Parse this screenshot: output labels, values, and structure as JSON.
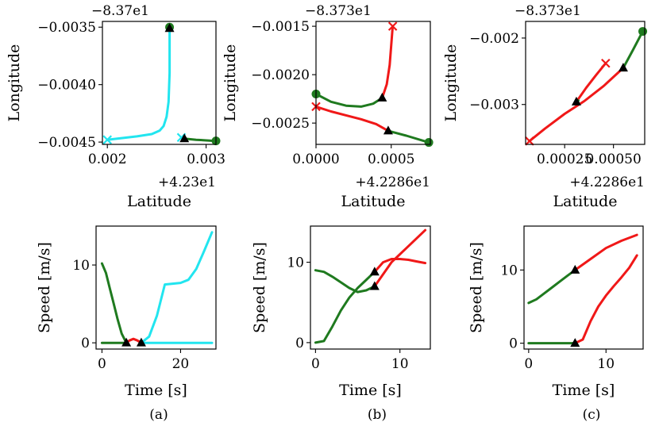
{
  "colors": {
    "cyan": "#22e5ef",
    "green": "#1f7a1f",
    "red": "#f01818",
    "black": "#000000"
  },
  "chart_data": [
    {
      "id": "a_pos",
      "type": "line",
      "panel": "a",
      "title": "",
      "xlabel": "Latitude",
      "ylabel": "Longitude",
      "offset_x": "+4.23e1",
      "offset_y": "−8.37e1",
      "xlim": [
        0.00195,
        0.0031
      ],
      "ylim": [
        -0.00452,
        -0.00345
      ],
      "xticks": [
        0.002,
        0.003
      ],
      "xtick_labels": [
        "0.002",
        "0.003"
      ],
      "yticks": [
        -0.0035,
        -0.004,
        -0.0045
      ],
      "ytick_labels": [
        "−0.0035",
        "−0.0040",
        "−0.0045"
      ],
      "series": [
        {
          "name": "vehicle-1",
          "color": "cyan",
          "x": [
            0.00263,
            0.00263,
            0.00262,
            0.0026,
            0.00257,
            0.00253,
            0.00245,
            0.0023,
            0.0021,
            0.002
          ],
          "y": [
            -0.0035,
            -0.0039,
            -0.00415,
            -0.00428,
            -0.00436,
            -0.0044,
            -0.00443,
            -0.00445,
            -0.00447,
            -0.00448
          ]
        },
        {
          "name": "vehicle-2",
          "color": "green",
          "x": [
            0.00278,
            0.0029,
            0.0031
          ],
          "y": [
            -0.00447,
            -0.00448,
            -0.00449
          ]
        },
        {
          "name": "vehicle-3",
          "color": "cyan",
          "x": [
            0.00275,
            0.00278
          ],
          "y": [
            -0.00446,
            -0.00447
          ]
        }
      ],
      "markers": [
        {
          "type": "circle",
          "color": "green",
          "x": 0.00263,
          "y": -0.0035
        },
        {
          "type": "triangle",
          "color": "black",
          "x": 0.00263,
          "y": -0.00351
        },
        {
          "type": "cross",
          "color": "cyan",
          "x": 0.002,
          "y": -0.00448
        },
        {
          "type": "cross",
          "color": "cyan",
          "x": 0.00275,
          "y": -0.00446
        },
        {
          "type": "triangle",
          "color": "black",
          "x": 0.00278,
          "y": -0.00447
        },
        {
          "type": "circle",
          "color": "green",
          "x": 0.0031,
          "y": -0.00449
        }
      ]
    },
    {
      "id": "b_pos",
      "type": "line",
      "panel": "b",
      "title": "",
      "xlabel": "Latitude",
      "ylabel": "Longitude",
      "offset_x": "+4.2286e1",
      "offset_y": "−8.373e1",
      "xlim": [
        0.0,
        0.00076
      ],
      "ylim": [
        -0.00272,
        -0.00145
      ],
      "xticks": [
        0.0,
        0.0005
      ],
      "xtick_labels": [
        "0.0000",
        "0.0005"
      ],
      "yticks": [
        -0.0015,
        -0.002,
        -0.0025
      ],
      "ytick_labels": [
        "−0.0015",
        "−0.0020",
        "−0.0025"
      ],
      "series": [
        {
          "name": "green",
          "color": "green",
          "x": [
            0.0,
            0.0001,
            0.0002,
            0.0003,
            0.00038,
            0.00044
          ],
          "y": [
            -0.0022,
            -0.00228,
            -0.00232,
            -0.00233,
            -0.0023,
            -0.00224
          ]
        },
        {
          "name": "green2",
          "color": "green",
          "x": [
            0.00048,
            0.0006,
            0.00075
          ],
          "y": [
            -0.00258,
            -0.00263,
            -0.0027
          ]
        },
        {
          "name": "red",
          "color": "red",
          "x": [
            0.0,
            0.0001,
            0.0002,
            0.0003,
            0.0004,
            0.00048
          ],
          "y": [
            -0.00233,
            -0.00238,
            -0.00242,
            -0.00246,
            -0.00251,
            -0.00258
          ]
        },
        {
          "name": "red2",
          "color": "red",
          "x": [
            0.00044,
            0.00047,
            0.00049,
            0.0005,
            0.00051
          ],
          "y": [
            -0.00224,
            -0.0021,
            -0.0019,
            -0.0017,
            -0.0015
          ]
        }
      ],
      "markers": [
        {
          "type": "circle",
          "color": "green",
          "x": 0.0,
          "y": -0.0022
        },
        {
          "type": "cross",
          "color": "red",
          "x": 0.0,
          "y": -0.00233
        },
        {
          "type": "triangle",
          "color": "black",
          "x": 0.00044,
          "y": -0.00224
        },
        {
          "type": "triangle",
          "color": "black",
          "x": 0.00048,
          "y": -0.00258
        },
        {
          "type": "cross",
          "color": "red",
          "x": 0.00051,
          "y": -0.0015
        },
        {
          "type": "circle",
          "color": "green",
          "x": 0.00075,
          "y": -0.0027
        }
      ]
    },
    {
      "id": "c_pos",
      "type": "line",
      "panel": "c",
      "title": "",
      "xlabel": "Latitude",
      "ylabel": "Longitude",
      "offset_x": "+4.2286e1",
      "offset_y": "−8.373e1",
      "xlim": [
        5e-05,
        0.00066
      ],
      "ylim": [
        -0.0036,
        -0.00175
      ],
      "xticks": [
        0.00025,
        0.0005
      ],
      "xtick_labels": [
        "0.00025",
        "0.00050"
      ],
      "yticks": [
        -0.002,
        -0.003
      ],
      "ytick_labels": [
        "−0.002",
        "−0.003"
      ],
      "series": [
        {
          "name": "red-long",
          "color": "red",
          "x": [
            7e-05,
            0.00015,
            0.00025,
            0.00035,
            0.00045,
            0.00055
          ],
          "y": [
            -0.00355,
            -0.00336,
            -0.00314,
            -0.00295,
            -0.00272,
            -0.00245
          ]
        },
        {
          "name": "green-long",
          "color": "green",
          "x": [
            0.00055,
            0.0006,
            0.00065
          ],
          "y": [
            -0.00245,
            -0.00218,
            -0.0019
          ]
        },
        {
          "name": "red-short",
          "color": "red",
          "x": [
            0.00031,
            0.00036,
            0.00041,
            0.00046
          ],
          "y": [
            -0.00296,
            -0.00275,
            -0.00256,
            -0.00238
          ]
        },
        {
          "name": "green-short",
          "color": "green",
          "x": [
            0.00031,
            0.00032
          ],
          "y": [
            -0.00298,
            -0.00294
          ]
        }
      ],
      "markers": [
        {
          "type": "cross",
          "color": "red",
          "x": 7e-05,
          "y": -0.00355
        },
        {
          "type": "triangle",
          "color": "black",
          "x": 0.00031,
          "y": -0.00296
        },
        {
          "type": "cross",
          "color": "red",
          "x": 0.00046,
          "y": -0.00238
        },
        {
          "type": "triangle",
          "color": "black",
          "x": 0.00055,
          "y": -0.00245
        },
        {
          "type": "circle",
          "color": "green",
          "x": 0.00065,
          "y": -0.0019
        }
      ]
    },
    {
      "id": "a_speed",
      "type": "line",
      "panel": "a",
      "title": "",
      "xlabel": "Time [s]",
      "ylabel": "Speed [m/s]",
      "xlim": [
        -1.5,
        29
      ],
      "ylim": [
        -0.8,
        15
      ],
      "xticks": [
        0,
        20
      ],
      "xtick_labels": [
        "0",
        "20"
      ],
      "yticks": [
        0,
        10
      ],
      "ytick_labels": [
        "0",
        "10"
      ],
      "series": [
        {
          "name": "green-decel",
          "color": "green",
          "x": [
            0,
            1,
            2,
            3,
            4,
            5,
            6.2
          ],
          "y": [
            10.2,
            9,
            7,
            5,
            3,
            1.2,
            0
          ]
        },
        {
          "name": "green-stop",
          "color": "green",
          "x": [
            0,
            6.2
          ],
          "y": [
            0,
            0
          ]
        },
        {
          "name": "red-bump",
          "color": "red",
          "x": [
            6.2,
            7,
            8,
            9,
            10
          ],
          "y": [
            0,
            0.3,
            0.5,
            0.3,
            0
          ]
        },
        {
          "name": "cyan-accel",
          "color": "cyan",
          "x": [
            10,
            12,
            14,
            16,
            18,
            20,
            22,
            24,
            26,
            28
          ],
          "y": [
            0,
            0.8,
            3.5,
            7.5,
            7.6,
            7.7,
            8.1,
            9.5,
            11.8,
            14.2
          ]
        },
        {
          "name": "cyan-stop",
          "color": "cyan",
          "x": [
            10,
            28
          ],
          "y": [
            0,
            0
          ]
        }
      ],
      "markers": [
        {
          "type": "triangle",
          "color": "black",
          "x": 6.2,
          "y": 0
        },
        {
          "type": "triangle",
          "color": "black",
          "x": 10,
          "y": 0
        }
      ]
    },
    {
      "id": "b_speed",
      "type": "line",
      "panel": "b",
      "title": "",
      "xlabel": "Time [s]",
      "ylabel": "Speed [m/s]",
      "xlim": [
        -0.6,
        13.6
      ],
      "ylim": [
        -0.8,
        14.5
      ],
      "xticks": [
        0,
        10
      ],
      "xtick_labels": [
        "0",
        "10"
      ],
      "yticks": [
        0,
        10
      ],
      "ytick_labels": [
        "0",
        "10"
      ],
      "series": [
        {
          "name": "green-decel",
          "color": "green",
          "x": [
            0,
            1,
            2,
            3,
            4,
            5,
            6,
            7
          ],
          "y": [
            9,
            8.8,
            8.2,
            7.5,
            6.8,
            6.3,
            6.5,
            7
          ]
        },
        {
          "name": "green-accel",
          "color": "green",
          "x": [
            0,
            1,
            2,
            3,
            4,
            5,
            6,
            7
          ],
          "y": [
            0,
            0.2,
            2,
            4,
            5.6,
            6.8,
            7.8,
            8.8
          ]
        },
        {
          "name": "red-upper",
          "color": "red",
          "x": [
            7,
            8,
            9,
            10,
            11,
            12,
            13
          ],
          "y": [
            7,
            8.5,
            10,
            11,
            12,
            13,
            14
          ]
        },
        {
          "name": "red-lower",
          "color": "red",
          "x": [
            7,
            8,
            9,
            10,
            11,
            12,
            13
          ],
          "y": [
            8.8,
            10,
            10.4,
            10.4,
            10.3,
            10.1,
            9.9
          ]
        }
      ],
      "markers": [
        {
          "type": "triangle",
          "color": "black",
          "x": 7,
          "y": 8.8
        },
        {
          "type": "triangle",
          "color": "black",
          "x": 7,
          "y": 7
        }
      ]
    },
    {
      "id": "c_speed",
      "type": "line",
      "panel": "c",
      "title": "",
      "xlabel": "Time [s]",
      "ylabel": "Speed [m/s]",
      "xlim": [
        -0.6,
        14.8
      ],
      "ylim": [
        -0.8,
        16
      ],
      "xticks": [
        0,
        10
      ],
      "xtick_labels": [
        "0",
        "10"
      ],
      "yticks": [
        0,
        10
      ],
      "ytick_labels": [
        "0",
        "10"
      ],
      "series": [
        {
          "name": "green-upper",
          "color": "green",
          "x": [
            0,
            1,
            2,
            3,
            4,
            5,
            6
          ],
          "y": [
            5.5,
            6,
            6.8,
            7.6,
            8.4,
            9.2,
            10
          ]
        },
        {
          "name": "red-upper",
          "color": "red",
          "x": [
            6,
            8,
            10,
            12,
            14
          ],
          "y": [
            10,
            11.5,
            13,
            14,
            14.8
          ]
        },
        {
          "name": "green-lower",
          "color": "green",
          "x": [
            0,
            6
          ],
          "y": [
            0,
            0
          ]
        },
        {
          "name": "red-lower",
          "color": "red",
          "x": [
            6,
            7,
            8,
            9,
            10,
            11,
            12,
            13,
            14
          ],
          "y": [
            0,
            0.5,
            3,
            5,
            6.5,
            7.8,
            9,
            10.3,
            12
          ]
        }
      ],
      "markers": [
        {
          "type": "triangle",
          "color": "black",
          "x": 6,
          "y": 10
        },
        {
          "type": "triangle",
          "color": "black",
          "x": 6,
          "y": 0
        }
      ]
    }
  ],
  "captions": [
    "(a)",
    "(b)",
    "(c)"
  ]
}
